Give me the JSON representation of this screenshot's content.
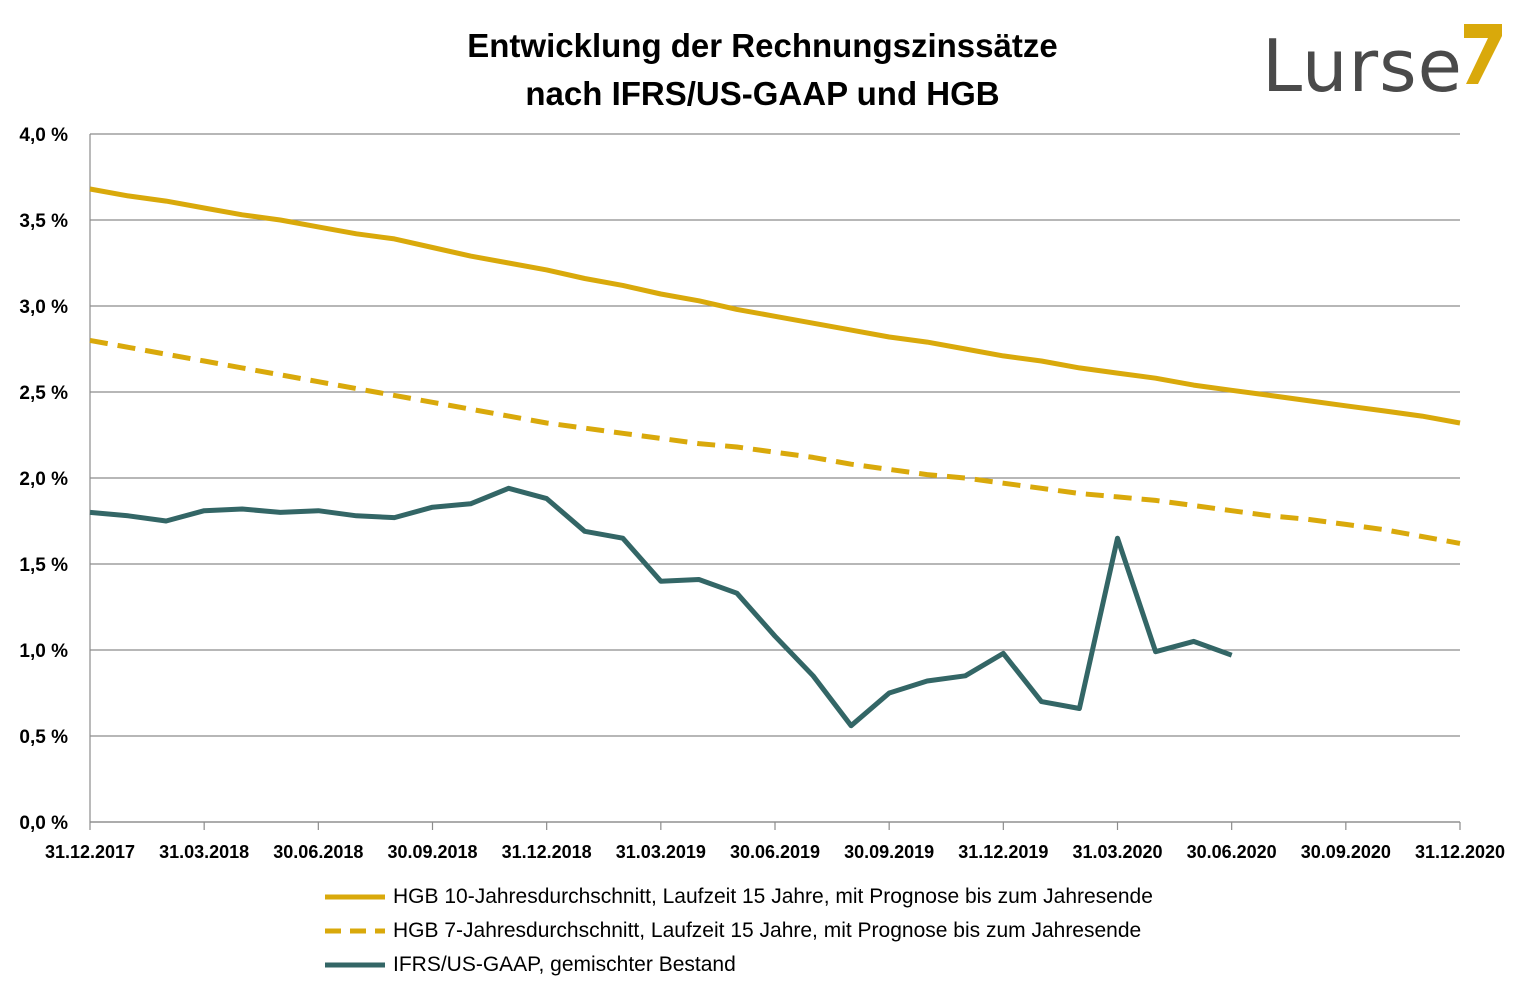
{
  "chart_data": {
    "type": "line",
    "title": "Entwicklung der Rechnungszinssätze",
    "subtitle": "nach IFRS/US-GAAP und HGB",
    "logo_text": "Lurse",
    "ylim": [
      0,
      4.0
    ],
    "yticks": [
      "0,0 %",
      "0,5 %",
      "1,0 %",
      "1,5 %",
      "2,0 %",
      "2,5 %",
      "3,0 %",
      "3,5 %",
      "4,0 %"
    ],
    "xticks": [
      "31.12.2017",
      "31.03.2018",
      "30.06.2018",
      "30.09.2018",
      "31.12.2018",
      "31.03.2019",
      "30.06.2019",
      "30.09.2019",
      "31.12.2019",
      "31.03.2020",
      "30.06.2020",
      "30.09.2020",
      "31.12.2020"
    ],
    "x_months": [
      "12/2017",
      "01/2018",
      "02/2018",
      "03/2018",
      "04/2018",
      "05/2018",
      "06/2018",
      "07/2018",
      "08/2018",
      "09/2018",
      "10/2018",
      "11/2018",
      "12/2018",
      "01/2019",
      "02/2019",
      "03/2019",
      "04/2019",
      "05/2019",
      "06/2019",
      "07/2019",
      "08/2019",
      "09/2019",
      "10/2019",
      "11/2019",
      "12/2019",
      "01/2020",
      "02/2020",
      "03/2020",
      "04/2020",
      "05/2020",
      "06/2020",
      "07/2020",
      "08/2020",
      "09/2020",
      "10/2020",
      "11/2020",
      "12/2020"
    ],
    "grid": true,
    "legend_position": "bottom",
    "colors": {
      "hgb10": "#D9A90B",
      "hgb7": "#D9A90B",
      "ifrs": "#336666"
    },
    "series": [
      {
        "name": "HGB 10-Jahresdurchschnitt, Laufzeit 15 Jahre, mit Prognose bis zum Jahresende",
        "style": "solid",
        "values": [
          3.68,
          3.64,
          3.61,
          3.57,
          3.53,
          3.5,
          3.46,
          3.42,
          3.39,
          3.34,
          3.29,
          3.25,
          3.21,
          3.16,
          3.12,
          3.07,
          3.03,
          2.98,
          2.94,
          2.9,
          2.86,
          2.82,
          2.79,
          2.75,
          2.71,
          2.68,
          2.64,
          2.61,
          2.58,
          2.54,
          2.51,
          2.48,
          2.45,
          2.42,
          2.39,
          2.36,
          2.32
        ]
      },
      {
        "name": "HGB 7-Jahresdurchschnitt, Laufzeit 15 Jahre, mit Prognose bis zum Jahresende",
        "style": "dashed",
        "values": [
          2.8,
          2.76,
          2.72,
          2.68,
          2.64,
          2.6,
          2.56,
          2.52,
          2.48,
          2.44,
          2.4,
          2.36,
          2.32,
          2.29,
          2.26,
          2.23,
          2.2,
          2.18,
          2.15,
          2.12,
          2.08,
          2.05,
          2.02,
          2.0,
          1.97,
          1.94,
          1.91,
          1.89,
          1.87,
          1.84,
          1.81,
          1.78,
          1.76,
          1.73,
          1.7,
          1.66,
          1.62
        ]
      },
      {
        "name": "IFRS/US-GAAP, gemischter Bestand",
        "style": "solid",
        "values": [
          1.8,
          1.78,
          1.75,
          1.81,
          1.82,
          1.8,
          1.81,
          1.78,
          1.77,
          1.83,
          1.85,
          1.94,
          1.88,
          1.69,
          1.65,
          1.4,
          1.41,
          1.33,
          1.08,
          0.85,
          0.56,
          0.75,
          0.82,
          0.85,
          0.98,
          0.7,
          0.66,
          1.65,
          0.99,
          1.05,
          0.97
        ]
      }
    ]
  }
}
